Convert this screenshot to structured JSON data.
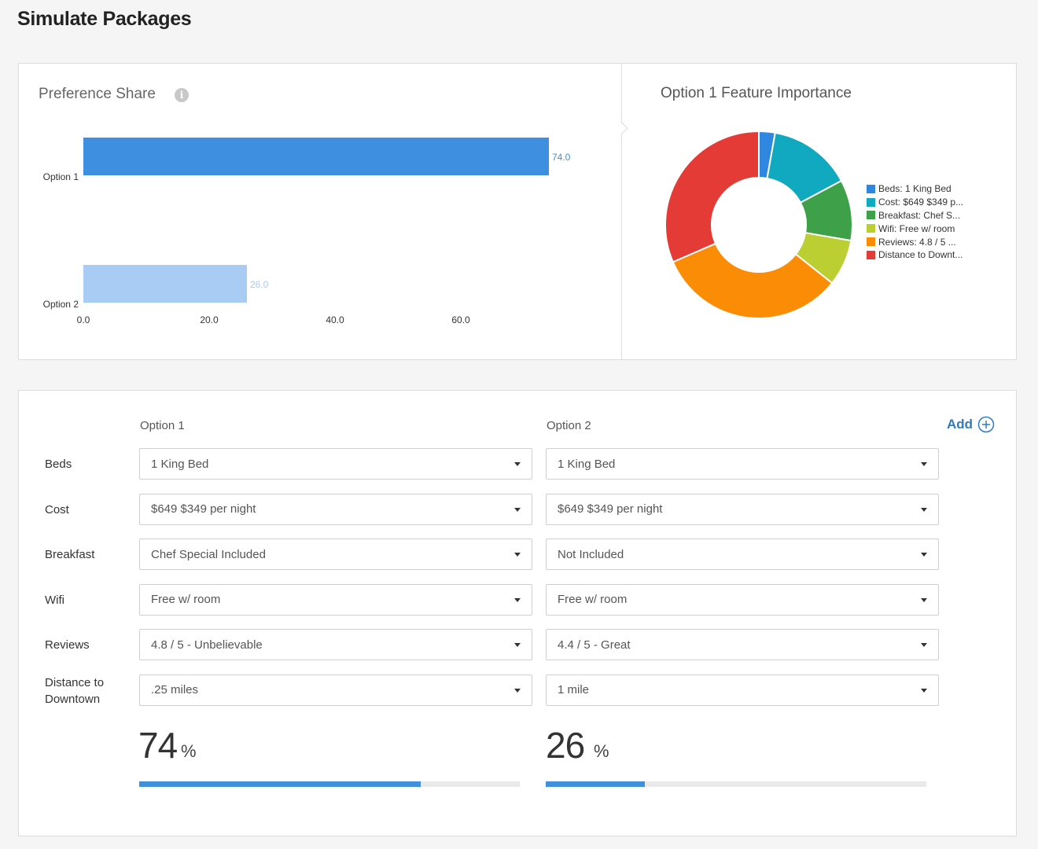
{
  "page": {
    "title": "Simulate Packages"
  },
  "preference_share": {
    "title": "Preference Share",
    "info_icon": "info-icon",
    "chart_data": {
      "type": "bar",
      "orientation": "horizontal",
      "categories": [
        "Option 1",
        "Option 2"
      ],
      "values": [
        74.0,
        26.0
      ],
      "value_labels": [
        "74.0",
        "26.0"
      ],
      "colors": [
        "#3f8fe0",
        "#a9ccf4"
      ],
      "xticks": [
        "0.0",
        "20.0",
        "40.0",
        "60.0"
      ],
      "xlim": [
        0,
        80
      ]
    }
  },
  "feature_importance": {
    "title": "Option 1 Feature Importance",
    "chart_data": {
      "type": "pie",
      "donut": true,
      "labels": [
        "Beds: 1 King Bed",
        "Cost: $649 $349 p...",
        "Breakfast: Chef S...",
        "Wifi: Free w/ room",
        "Reviews: 4.8 / 5 ...",
        "Distance to Downt..."
      ],
      "values": [
        2.8,
        14.4,
        10.5,
        8.0,
        32.8,
        31.5
      ],
      "colors": [
        "#2f87e0",
        "#10a9c0",
        "#3ea048",
        "#bccf32",
        "#fb8c06",
        "#e43b36"
      ],
      "legend_position": "right"
    }
  },
  "simulator": {
    "add_label": "Add",
    "options": [
      {
        "header": "Option 1",
        "share_value": "74",
        "share_unit": "%",
        "share_fraction": 0.74
      },
      {
        "header": "Option 2",
        "share_value": "26",
        "share_unit": "%",
        "share_fraction": 0.26
      }
    ],
    "rows": [
      {
        "label": "Beds",
        "values": [
          "1 King Bed",
          "1 King Bed"
        ]
      },
      {
        "label": "Cost",
        "values": [
          "$649 $349 per night",
          "$649 $349 per night"
        ]
      },
      {
        "label": "Breakfast",
        "values": [
          "Chef Special Included",
          "Not Included"
        ]
      },
      {
        "label": "Wifi",
        "values": [
          "Free w/ room",
          "Free w/ room"
        ]
      },
      {
        "label": "Reviews",
        "values": [
          "4.8 / 5 - Unbelievable",
          "4.4 / 5 - Great"
        ]
      },
      {
        "label": "Distance to Downtown",
        "label_lines": [
          "Distance to",
          "Downtown"
        ],
        "values": [
          ".25 miles",
          "1 mile"
        ]
      }
    ]
  }
}
